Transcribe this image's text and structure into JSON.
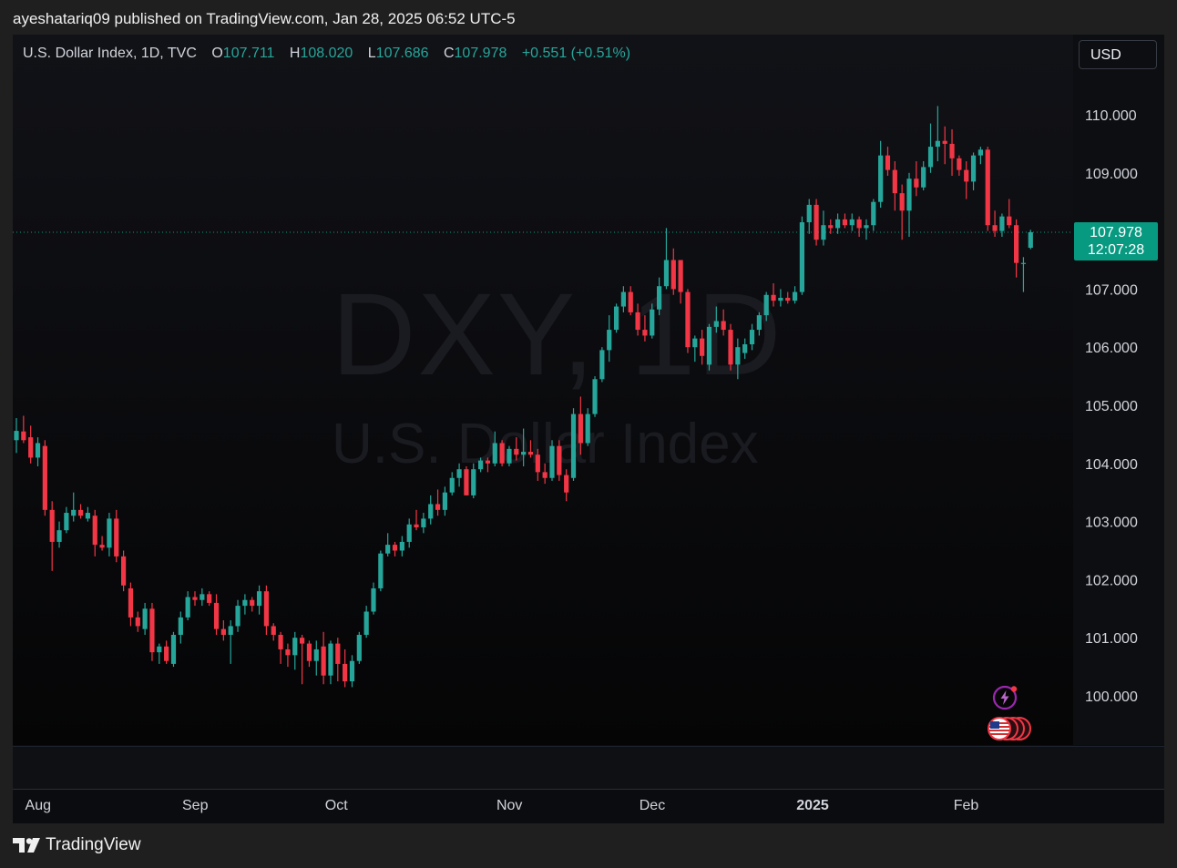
{
  "caption": "ayeshatariq09 published on TradingView.com, Jan 28, 2025 06:52 UTC-5",
  "legend": {
    "name": "U.S. Dollar Index, 1D, TVC",
    "o_label": "O",
    "o_value": "107.711",
    "h_label": "H",
    "h_value": "108.020",
    "l_label": "L",
    "l_value": "107.686",
    "c_label": "C",
    "c_value": "107.978",
    "change": "+0.551 (+0.51%)"
  },
  "currency_button": "USD",
  "watermark": {
    "symbol": "DXY, 1D",
    "name": "U.S. Dollar Index"
  },
  "last_price": {
    "price": "107.978",
    "countdown": "12:07:28"
  },
  "footer_brand": "TradingView",
  "icons": {
    "flash": "lightning-icon",
    "events": "us-flag-events-icon",
    "brand": "tradingview-logo-icon"
  },
  "colors": {
    "up": "#26a69a",
    "down": "#f23645",
    "last_price_bg": "#089981"
  },
  "chart_data": {
    "type": "candlestick",
    "y_ticks": [
      "110.000",
      "109.000",
      "108.000",
      "107.000",
      "106.000",
      "105.000",
      "104.000",
      "103.000",
      "102.000",
      "101.000",
      "100.000"
    ],
    "ylim": [
      99.2,
      111.4
    ],
    "time_labels": [
      {
        "label": "Aug",
        "index": 3,
        "bold": false
      },
      {
        "label": "Sep",
        "index": 25,
        "bold": false
      },
      {
        "label": "Oct",
        "index": 45,
        "bold": false
      },
      {
        "label": "Nov",
        "index": 69,
        "bold": false
      },
      {
        "label": "Dec",
        "index": 89,
        "bold": false
      },
      {
        "label": "2025",
        "index": 111,
        "bold": true
      },
      {
        "label": "Feb",
        "index": 133,
        "bold": false
      }
    ],
    "grid": false,
    "candles": [
      {
        "o": 104.4,
        "h": 104.78,
        "l": 104.18,
        "c": 104.56
      },
      {
        "o": 104.55,
        "h": 104.82,
        "l": 104.35,
        "c": 104.4
      },
      {
        "o": 104.45,
        "h": 104.65,
        "l": 104.0,
        "c": 104.1
      },
      {
        "o": 104.1,
        "h": 104.45,
        "l": 103.95,
        "c": 104.35
      },
      {
        "o": 104.3,
        "h": 104.4,
        "l": 103.1,
        "c": 103.2
      },
      {
        "o": 103.2,
        "h": 103.35,
        "l": 102.15,
        "c": 102.65
      },
      {
        "o": 102.65,
        "h": 103.0,
        "l": 102.55,
        "c": 102.85
      },
      {
        "o": 102.85,
        "h": 103.25,
        "l": 102.8,
        "c": 103.15
      },
      {
        "o": 103.1,
        "h": 103.5,
        "l": 103.0,
        "c": 103.2
      },
      {
        "o": 103.2,
        "h": 103.3,
        "l": 103.05,
        "c": 103.1
      },
      {
        "o": 103.05,
        "h": 103.25,
        "l": 103.0,
        "c": 103.15
      },
      {
        "o": 103.1,
        "h": 103.2,
        "l": 102.4,
        "c": 102.6
      },
      {
        "o": 102.6,
        "h": 102.75,
        "l": 102.5,
        "c": 102.55
      },
      {
        "o": 102.55,
        "h": 103.15,
        "l": 102.4,
        "c": 103.05
      },
      {
        "o": 103.05,
        "h": 103.2,
        "l": 102.3,
        "c": 102.4
      },
      {
        "o": 102.4,
        "h": 102.5,
        "l": 101.8,
        "c": 101.9
      },
      {
        "o": 101.85,
        "h": 101.95,
        "l": 101.2,
        "c": 101.35
      },
      {
        "o": 101.35,
        "h": 101.45,
        "l": 101.1,
        "c": 101.2
      },
      {
        "o": 101.15,
        "h": 101.6,
        "l": 101.05,
        "c": 101.5
      },
      {
        "o": 101.5,
        "h": 101.6,
        "l": 100.6,
        "c": 100.75
      },
      {
        "o": 100.75,
        "h": 100.9,
        "l": 100.55,
        "c": 100.85
      },
      {
        "o": 100.85,
        "h": 100.95,
        "l": 100.55,
        "c": 100.6
      },
      {
        "o": 100.55,
        "h": 101.1,
        "l": 100.5,
        "c": 101.05
      },
      {
        "o": 101.05,
        "h": 101.45,
        "l": 100.9,
        "c": 101.35
      },
      {
        "o": 101.35,
        "h": 101.8,
        "l": 101.3,
        "c": 101.7
      },
      {
        "o": 101.7,
        "h": 101.8,
        "l": 101.55,
        "c": 101.65
      },
      {
        "o": 101.65,
        "h": 101.85,
        "l": 101.55,
        "c": 101.75
      },
      {
        "o": 101.75,
        "h": 101.8,
        "l": 101.55,
        "c": 101.6
      },
      {
        "o": 101.6,
        "h": 101.75,
        "l": 101.05,
        "c": 101.15
      },
      {
        "o": 101.15,
        "h": 101.3,
        "l": 100.95,
        "c": 101.05
      },
      {
        "o": 101.05,
        "h": 101.3,
        "l": 100.55,
        "c": 101.2
      },
      {
        "o": 101.2,
        "h": 101.65,
        "l": 101.1,
        "c": 101.55
      },
      {
        "o": 101.55,
        "h": 101.75,
        "l": 101.4,
        "c": 101.65
      },
      {
        "o": 101.65,
        "h": 101.7,
        "l": 101.45,
        "c": 101.55
      },
      {
        "o": 101.55,
        "h": 101.9,
        "l": 101.4,
        "c": 101.8
      },
      {
        "o": 101.8,
        "h": 101.9,
        "l": 101.05,
        "c": 101.2
      },
      {
        "o": 101.2,
        "h": 101.25,
        "l": 100.95,
        "c": 101.05
      },
      {
        "o": 101.05,
        "h": 101.1,
        "l": 100.55,
        "c": 100.8
      },
      {
        "o": 100.8,
        "h": 100.9,
        "l": 100.5,
        "c": 100.7
      },
      {
        "o": 100.7,
        "h": 101.1,
        "l": 100.45,
        "c": 101.0
      },
      {
        "o": 101.0,
        "h": 101.05,
        "l": 100.2,
        "c": 100.9
      },
      {
        "o": 100.9,
        "h": 100.95,
        "l": 100.5,
        "c": 100.6
      },
      {
        "o": 100.6,
        "h": 100.95,
        "l": 100.35,
        "c": 100.8
      },
      {
        "o": 100.85,
        "h": 101.1,
        "l": 100.2,
        "c": 100.35
      },
      {
        "o": 100.35,
        "h": 100.95,
        "l": 100.2,
        "c": 100.9
      },
      {
        "o": 100.9,
        "h": 101.0,
        "l": 100.25,
        "c": 100.55
      },
      {
        "o": 100.55,
        "h": 100.8,
        "l": 100.15,
        "c": 100.25
      },
      {
        "o": 100.25,
        "h": 100.7,
        "l": 100.15,
        "c": 100.6
      },
      {
        "o": 100.6,
        "h": 101.1,
        "l": 100.55,
        "c": 101.05
      },
      {
        "o": 101.05,
        "h": 101.55,
        "l": 101.0,
        "c": 101.45
      },
      {
        "o": 101.45,
        "h": 101.95,
        "l": 101.4,
        "c": 101.85
      },
      {
        "o": 101.85,
        "h": 102.5,
        "l": 101.8,
        "c": 102.45
      },
      {
        "o": 102.45,
        "h": 102.8,
        "l": 102.4,
        "c": 102.6
      },
      {
        "o": 102.6,
        "h": 102.65,
        "l": 102.4,
        "c": 102.5
      },
      {
        "o": 102.5,
        "h": 102.75,
        "l": 102.4,
        "c": 102.65
      },
      {
        "o": 102.65,
        "h": 103.05,
        "l": 102.55,
        "c": 102.95
      },
      {
        "o": 102.95,
        "h": 103.2,
        "l": 102.85,
        "c": 102.9
      },
      {
        "o": 102.9,
        "h": 103.15,
        "l": 102.8,
        "c": 103.05
      },
      {
        "o": 103.05,
        "h": 103.45,
        "l": 102.95,
        "c": 103.3
      },
      {
        "o": 103.3,
        "h": 103.55,
        "l": 103.1,
        "c": 103.2
      },
      {
        "o": 103.2,
        "h": 103.6,
        "l": 103.1,
        "c": 103.5
      },
      {
        "o": 103.5,
        "h": 103.85,
        "l": 103.45,
        "c": 103.75
      },
      {
        "o": 103.75,
        "h": 104.0,
        "l": 103.6,
        "c": 103.9
      },
      {
        "o": 103.9,
        "h": 103.95,
        "l": 103.45,
        "c": 103.45
      },
      {
        "o": 103.45,
        "h": 104.0,
        "l": 103.4,
        "c": 103.9
      },
      {
        "o": 103.9,
        "h": 104.1,
        "l": 103.85,
        "c": 104.05
      },
      {
        "o": 104.05,
        "h": 104.1,
        "l": 103.85,
        "c": 104.0
      },
      {
        "o": 104.0,
        "h": 104.55,
        "l": 103.95,
        "c": 104.35
      },
      {
        "o": 104.35,
        "h": 104.4,
        "l": 103.95,
        "c": 104.0
      },
      {
        "o": 104.0,
        "h": 104.3,
        "l": 103.95,
        "c": 104.25
      },
      {
        "o": 104.25,
        "h": 104.45,
        "l": 104.05,
        "c": 104.15
      },
      {
        "o": 104.15,
        "h": 104.6,
        "l": 103.95,
        "c": 104.2
      },
      {
        "o": 104.2,
        "h": 104.4,
        "l": 104.1,
        "c": 104.15
      },
      {
        "o": 104.15,
        "h": 104.25,
        "l": 103.7,
        "c": 103.85
      },
      {
        "o": 103.85,
        "h": 104.0,
        "l": 103.65,
        "c": 103.75
      },
      {
        "o": 103.75,
        "h": 104.4,
        "l": 103.7,
        "c": 104.3
      },
      {
        "o": 104.3,
        "h": 104.4,
        "l": 103.7,
        "c": 103.8
      },
      {
        "o": 103.8,
        "h": 103.9,
        "l": 103.35,
        "c": 103.5
      },
      {
        "o": 103.75,
        "h": 104.95,
        "l": 103.7,
        "c": 104.85
      },
      {
        "o": 104.85,
        "h": 105.15,
        "l": 104.15,
        "c": 104.35
      },
      {
        "o": 104.35,
        "h": 104.95,
        "l": 104.3,
        "c": 104.85
      },
      {
        "o": 104.85,
        "h": 105.5,
        "l": 104.8,
        "c": 105.45
      },
      {
        "o": 105.45,
        "h": 106.0,
        "l": 105.4,
        "c": 105.95
      },
      {
        "o": 105.95,
        "h": 106.55,
        "l": 105.75,
        "c": 106.3
      },
      {
        "o": 106.3,
        "h": 106.75,
        "l": 106.25,
        "c": 106.7
      },
      {
        "o": 106.7,
        "h": 107.05,
        "l": 106.6,
        "c": 106.95
      },
      {
        "o": 106.95,
        "h": 107.05,
        "l": 106.55,
        "c": 106.6
      },
      {
        "o": 106.6,
        "h": 106.75,
        "l": 106.2,
        "c": 106.3
      },
      {
        "o": 106.3,
        "h": 106.55,
        "l": 106.1,
        "c": 106.2
      },
      {
        "o": 106.2,
        "h": 106.75,
        "l": 106.15,
        "c": 106.65
      },
      {
        "o": 106.65,
        "h": 107.2,
        "l": 106.55,
        "c": 107.05
      },
      {
        "o": 107.05,
        "h": 108.05,
        "l": 107.0,
        "c": 107.5
      },
      {
        "o": 107.5,
        "h": 107.7,
        "l": 106.9,
        "c": 107.0
      },
      {
        "o": 107.5,
        "h": 107.5,
        "l": 106.75,
        "c": 106.95
      },
      {
        "o": 106.95,
        "h": 107.0,
        "l": 105.9,
        "c": 106.0
      },
      {
        "o": 106.0,
        "h": 106.2,
        "l": 105.75,
        "c": 106.15
      },
      {
        "o": 106.15,
        "h": 106.3,
        "l": 105.7,
        "c": 105.85
      },
      {
        "o": 105.7,
        "h": 106.4,
        "l": 105.6,
        "c": 106.35
      },
      {
        "o": 106.35,
        "h": 106.7,
        "l": 106.25,
        "c": 106.45
      },
      {
        "o": 106.45,
        "h": 106.65,
        "l": 106.2,
        "c": 106.3
      },
      {
        "o": 106.3,
        "h": 106.4,
        "l": 105.6,
        "c": 105.7
      },
      {
        "o": 105.7,
        "h": 106.15,
        "l": 105.45,
        "c": 106.0
      },
      {
        "o": 105.9,
        "h": 106.15,
        "l": 105.8,
        "c": 106.05
      },
      {
        "o": 106.05,
        "h": 106.4,
        "l": 105.95,
        "c": 106.3
      },
      {
        "o": 106.3,
        "h": 106.6,
        "l": 106.2,
        "c": 106.55
      },
      {
        "o": 106.55,
        "h": 106.95,
        "l": 106.45,
        "c": 106.9
      },
      {
        "o": 106.9,
        "h": 107.1,
        "l": 106.7,
        "c": 106.8
      },
      {
        "o": 106.8,
        "h": 107.0,
        "l": 106.7,
        "c": 106.85
      },
      {
        "o": 106.85,
        "h": 106.95,
        "l": 106.75,
        "c": 106.8
      },
      {
        "o": 106.8,
        "h": 107.05,
        "l": 106.75,
        "c": 106.95
      },
      {
        "o": 106.95,
        "h": 108.25,
        "l": 106.9,
        "c": 108.15
      },
      {
        "o": 108.15,
        "h": 108.55,
        "l": 107.95,
        "c": 108.45
      },
      {
        "o": 108.45,
        "h": 108.55,
        "l": 107.75,
        "c": 107.85
      },
      {
        "o": 107.85,
        "h": 108.35,
        "l": 107.75,
        "c": 108.1
      },
      {
        "o": 108.1,
        "h": 108.2,
        "l": 107.95,
        "c": 108.05
      },
      {
        "o": 108.05,
        "h": 108.3,
        "l": 107.95,
        "c": 108.2
      },
      {
        "o": 108.2,
        "h": 108.3,
        "l": 108.05,
        "c": 108.1
      },
      {
        "o": 108.1,
        "h": 108.3,
        "l": 108.0,
        "c": 108.2
      },
      {
        "o": 108.2,
        "h": 108.25,
        "l": 107.9,
        "c": 108.05
      },
      {
        "o": 108.05,
        "h": 108.2,
        "l": 107.85,
        "c": 108.1
      },
      {
        "o": 108.1,
        "h": 108.55,
        "l": 108.0,
        "c": 108.5
      },
      {
        "o": 108.5,
        "h": 109.55,
        "l": 108.4,
        "c": 109.3
      },
      {
        "o": 109.3,
        "h": 109.45,
        "l": 108.95,
        "c": 109.05
      },
      {
        "o": 109.05,
        "h": 109.2,
        "l": 108.35,
        "c": 108.65
      },
      {
        "o": 108.65,
        "h": 108.8,
        "l": 107.85,
        "c": 108.35
      },
      {
        "o": 108.35,
        "h": 109.0,
        "l": 107.9,
        "c": 108.9
      },
      {
        "o": 108.9,
        "h": 109.2,
        "l": 108.6,
        "c": 108.75
      },
      {
        "o": 108.75,
        "h": 109.2,
        "l": 108.7,
        "c": 109.1
      },
      {
        "o": 109.1,
        "h": 109.85,
        "l": 109.0,
        "c": 109.45
      },
      {
        "o": 109.45,
        "h": 110.15,
        "l": 109.2,
        "c": 109.55
      },
      {
        "o": 109.55,
        "h": 109.8,
        "l": 109.15,
        "c": 109.5
      },
      {
        "o": 109.5,
        "h": 109.75,
        "l": 108.95,
        "c": 109.25
      },
      {
        "o": 109.25,
        "h": 109.3,
        "l": 108.95,
        "c": 109.05
      },
      {
        "o": 109.05,
        "h": 109.2,
        "l": 108.55,
        "c": 108.85
      },
      {
        "o": 108.85,
        "h": 109.35,
        "l": 108.7,
        "c": 109.3
      },
      {
        "o": 109.3,
        "h": 109.45,
        "l": 109.15,
        "c": 109.4
      },
      {
        "o": 109.4,
        "h": 109.45,
        "l": 108.0,
        "c": 108.1
      },
      {
        "o": 108.1,
        "h": 108.35,
        "l": 107.9,
        "c": 108.0
      },
      {
        "o": 108.0,
        "h": 108.3,
        "l": 107.9,
        "c": 108.25
      },
      {
        "o": 108.25,
        "h": 108.55,
        "l": 108.05,
        "c": 108.1
      },
      {
        "o": 108.1,
        "h": 108.2,
        "l": 107.2,
        "c": 107.45
      },
      {
        "o": 107.45,
        "h": 107.55,
        "l": 106.95,
        "c": 107.45
      },
      {
        "o": 107.711,
        "h": 108.02,
        "l": 107.686,
        "c": 107.978
      }
    ]
  }
}
